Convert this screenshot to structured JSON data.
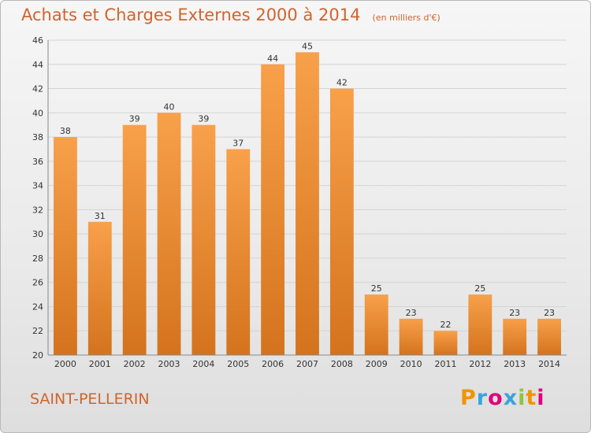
{
  "chart_data": {
    "type": "bar",
    "title": "Achats et Charges Externes 2000 à 2014",
    "subtitle": "(en milliers d'€)",
    "categories": [
      "2000",
      "2001",
      "2002",
      "2003",
      "2004",
      "2005",
      "2006",
      "2007",
      "2008",
      "2009",
      "2010",
      "2011",
      "2012",
      "2013",
      "2014"
    ],
    "values": [
      38,
      31,
      39,
      40,
      39,
      37,
      44,
      45,
      42,
      25,
      23,
      22,
      25,
      23,
      23
    ],
    "ylim": [
      20,
      46
    ],
    "yticks": [
      20,
      22,
      24,
      26,
      28,
      30,
      32,
      34,
      36,
      38,
      40,
      42,
      44,
      46
    ],
    "grid": true,
    "bar_color": "#f0943c"
  },
  "commune": "SAINT-PELLERIN",
  "logo": {
    "text": "Proxiti",
    "letters": [
      "P",
      "r",
      "o",
      "x",
      "i",
      "t",
      "i"
    ],
    "colors": [
      "#f29400",
      "#3aa3dc",
      "#e2007a",
      "#3aa3dc",
      "#8cc63f",
      "#f29400",
      "#e2007a"
    ]
  }
}
